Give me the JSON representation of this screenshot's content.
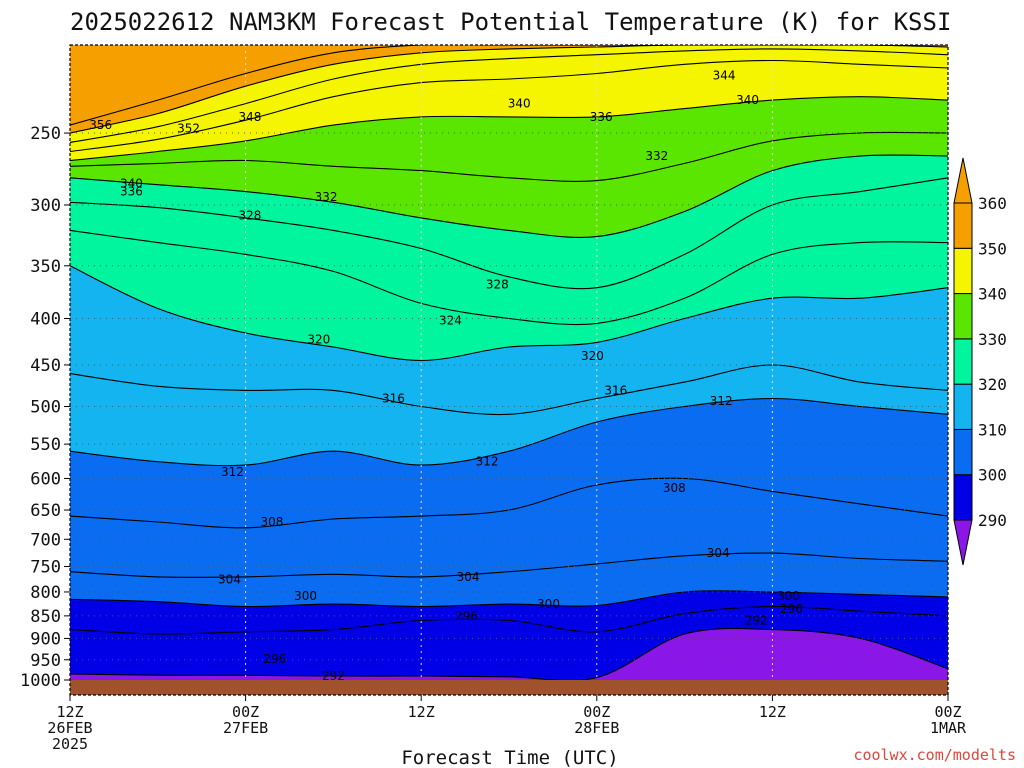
{
  "title": "2025022612 NAM3KM Forecast Potential Temperature (K) for KSSI",
  "credit": "coolwx.com/modelts",
  "colors": {
    "ground": "#a0522d",
    "bands": [
      "#8a16e8",
      "#0000e6",
      "#0a6cf0",
      "#14b4f0",
      "#00f59e",
      "#5ae600",
      "#f5f500",
      "#f5a000"
    ],
    "contour": "#000000",
    "grid": "#555555"
  },
  "chart_data": {
    "type": "area",
    "title": "2025022612 NAM3KM Forecast Potential Temperature (K) for KSSI",
    "xlabel": "Forecast Time (UTC)",
    "ylabel": "",
    "grid": true,
    "xlim": [
      0,
      60
    ],
    "ylim": [
      1000,
      200
    ],
    "ylog": true,
    "yticks": [
      250,
      300,
      350,
      400,
      450,
      500,
      550,
      600,
      650,
      700,
      750,
      800,
      850,
      900,
      950,
      1000
    ],
    "xticks": [
      {
        "hour": 0,
        "lines": [
          "12Z",
          "26FEB",
          "2025"
        ]
      },
      {
        "hour": 12,
        "lines": [
          "00Z",
          "27FEB"
        ]
      },
      {
        "hour": 24,
        "lines": [
          "12Z"
        ]
      },
      {
        "hour": 36,
        "lines": [
          "00Z",
          "28FEB"
        ]
      },
      {
        "hour": 48,
        "lines": [
          "12Z"
        ]
      },
      {
        "hour": 60,
        "lines": [
          "00Z",
          "1MAR"
        ]
      }
    ],
    "colorbar": {
      "levels": [
        290,
        300,
        310,
        320,
        330,
        340,
        350,
        360
      ],
      "labels": [
        "290",
        "300",
        "310",
        "320",
        "330",
        "340",
        "350",
        "360"
      ]
    },
    "hours": [
      0,
      6,
      12,
      18,
      24,
      30,
      36,
      42,
      48,
      54,
      60
    ],
    "contours": [
      {
        "value": 292,
        "label": "292",
        "p": [
          985,
          988,
          988,
          990,
          990,
          992,
          994,
          890,
          880,
          900,
          972
        ]
      },
      {
        "value": 296,
        "label": "296",
        "p": [
          880,
          890,
          885,
          880,
          860,
          860,
          885,
          845,
          830,
          840,
          850
        ]
      },
      {
        "value": 300,
        "label": "300",
        "p": [
          815,
          820,
          830,
          825,
          830,
          825,
          828,
          800,
          800,
          805,
          810
        ]
      },
      {
        "value": 304,
        "label": "304",
        "p": [
          760,
          770,
          770,
          765,
          770,
          760,
          745,
          730,
          725,
          735,
          740
        ]
      },
      {
        "value": 308,
        "label": "308",
        "p": [
          660,
          670,
          680,
          665,
          660,
          650,
          610,
          600,
          620,
          640,
          660
        ]
      },
      {
        "value": 312,
        "label": "312",
        "p": [
          560,
          575,
          580,
          560,
          580,
          560,
          520,
          500,
          490,
          500,
          510
        ]
      },
      {
        "value": 316,
        "label": "316",
        "p": [
          460,
          475,
          480,
          480,
          500,
          510,
          490,
          470,
          450,
          470,
          480
        ]
      },
      {
        "value": 320,
        "label": "320",
        "p": [
          350,
          390,
          415,
          430,
          445,
          430,
          425,
          400,
          380,
          380,
          370
        ]
      },
      {
        "value": 324,
        "label": "324",
        "p": [
          320,
          330,
          340,
          355,
          385,
          400,
          405,
          380,
          340,
          330,
          330
        ]
      },
      {
        "value": 328,
        "label": "328",
        "p": [
          298,
          302,
          310,
          320,
          335,
          360,
          370,
          340,
          300,
          290,
          280
        ]
      },
      {
        "value": 332,
        "label": "332",
        "p": [
          280,
          285,
          290,
          298,
          310,
          320,
          325,
          305,
          275,
          265,
          265
        ]
      },
      {
        "value": 336,
        "label": "336",
        "p": [
          272,
          270,
          268,
          272,
          275,
          280,
          282,
          270,
          255,
          250,
          250
        ]
      },
      {
        "value": 340,
        "label": "340",
        "p": [
          268,
          262,
          255,
          245,
          240,
          240,
          240,
          235,
          230,
          228,
          230
        ]
      },
      {
        "value": 344,
        "label": "344",
        "p": [
          262,
          254,
          242,
          228,
          220,
          218,
          215,
          210,
          208,
          210,
          212
        ]
      },
      {
        "value": 348,
        "label": "348",
        "p": [
          256,
          246,
          232,
          218,
          210,
          207,
          205,
          203,
          202,
          203,
          205
        ]
      },
      {
        "value": 352,
        "label": "352",
        "p": [
          250,
          238,
          222,
          210,
          204,
          202,
          201,
          200,
          200,
          200,
          201
        ]
      },
      {
        "value": 356,
        "label": "356",
        "p": [
          245,
          230,
          215,
          204,
          200,
          200,
          200,
          200,
          200,
          200,
          200
        ]
      }
    ],
    "contour_labels": [
      {
        "text": "356",
        "hour": 2.1,
        "p": 245
      },
      {
        "text": "352",
        "hour": 8.1,
        "p": 247
      },
      {
        "text": "348",
        "hour": 12.3,
        "p": 240
      },
      {
        "text": "340",
        "hour": 4.2,
        "p": 284
      },
      {
        "text": "336",
        "hour": 4.2,
        "p": 290
      },
      {
        "text": "332",
        "hour": 17.5,
        "p": 294
      },
      {
        "text": "328",
        "hour": 12.3,
        "p": 308
      },
      {
        "text": "340",
        "hour": 30.7,
        "p": 232
      },
      {
        "text": "336",
        "hour": 36.3,
        "p": 240
      },
      {
        "text": "344",
        "hour": 44.7,
        "p": 216
      },
      {
        "text": "340",
        "hour": 46.3,
        "p": 230
      },
      {
        "text": "332",
        "hour": 40.1,
        "p": 265
      },
      {
        "text": "328",
        "hour": 29.2,
        "p": 367
      },
      {
        "text": "324",
        "hour": 26.0,
        "p": 402
      },
      {
        "text": "320",
        "hour": 17.0,
        "p": 422
      },
      {
        "text": "320",
        "hour": 35.7,
        "p": 440
      },
      {
        "text": "316",
        "hour": 22.1,
        "p": 490
      },
      {
        "text": "316",
        "hour": 37.3,
        "p": 480
      },
      {
        "text": "312",
        "hour": 44.5,
        "p": 493
      },
      {
        "text": "312",
        "hour": 11.1,
        "p": 590
      },
      {
        "text": "312",
        "hour": 28.5,
        "p": 575
      },
      {
        "text": "308",
        "hour": 13.8,
        "p": 670
      },
      {
        "text": "308",
        "hour": 41.3,
        "p": 615
      },
      {
        "text": "304",
        "hour": 44.3,
        "p": 725
      },
      {
        "text": "304",
        "hour": 10.9,
        "p": 775
      },
      {
        "text": "304",
        "hour": 27.2,
        "p": 770
      },
      {
        "text": "300",
        "hour": 16.1,
        "p": 808
      },
      {
        "text": "300",
        "hour": 32.7,
        "p": 825
      },
      {
        "text": "300",
        "hour": 49.1,
        "p": 808
      },
      {
        "text": "296",
        "hour": 27.1,
        "p": 850
      },
      {
        "text": "296",
        "hour": 49.3,
        "p": 835
      },
      {
        "text": "292",
        "hour": 46.9,
        "p": 860
      },
      {
        "text": "296",
        "hour": 14.0,
        "p": 948
      },
      {
        "text": "292",
        "hour": 18.0,
        "p": 990
      }
    ]
  }
}
